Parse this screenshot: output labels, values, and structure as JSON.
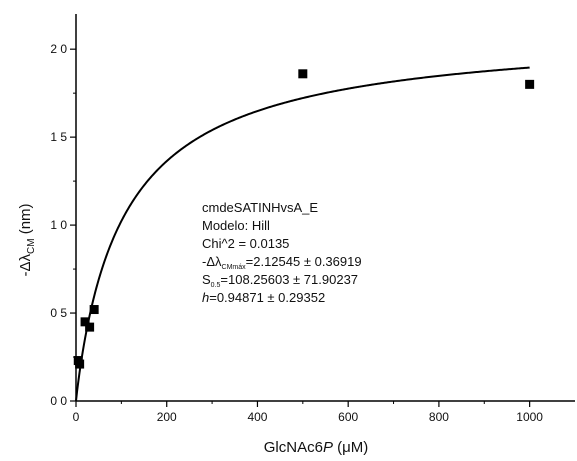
{
  "chart_data": {
    "type": "scatter",
    "title": "",
    "xlabel_main": "GlcNAc6",
    "xlabel_italic": "P",
    "xlabel_unit": " (μM)",
    "ylabel_main": "-Δλ",
    "ylabel_sub": "CM",
    "ylabel_unit": " (nm)",
    "xlim": [
      0,
      1100
    ],
    "ylim": [
      0,
      2.2
    ],
    "x_ticks": [
      0,
      200,
      400,
      600,
      800,
      1000
    ],
    "x_tick_labels": [
      "0",
      "200",
      "400",
      "600",
      "800",
      "1000"
    ],
    "y_ticks": [
      0,
      0.5,
      1.0,
      1.5,
      2.0
    ],
    "y_tick_labels": [
      "0 0",
      "0 5",
      "1 0",
      "1 5",
      "2 0"
    ],
    "grid": false,
    "series": [
      {
        "type": "scatter",
        "points": [
          {
            "x": 5,
            "y": 0.23
          },
          {
            "x": 8,
            "y": 0.21
          },
          {
            "x": 20,
            "y": 0.45
          },
          {
            "x": 30,
            "y": 0.42
          },
          {
            "x": 40,
            "y": 0.52
          },
          {
            "x": 500,
            "y": 1.86
          },
          {
            "x": 1000,
            "y": 1.8
          }
        ]
      },
      {
        "type": "line",
        "model": "hill",
        "params": {
          "vmax": 2.12545,
          "s05": 108.25603,
          "h": 0.94871
        },
        "x_range": [
          0,
          1000
        ]
      }
    ],
    "annotations": {
      "line1": "cmdeSATINHvsA_E",
      "line2": "Modelo: Hill",
      "line3": "Chi^2 = 0.0135",
      "line4_main": "-Δλ",
      "line4_sub": "CMmáx",
      "line4_rest": "=2.12545 ± 0.36919",
      "line5_main": "S",
      "line5_sub": "0.5",
      "line5_rest": "=108.25603 ± 71.90237",
      "line6_italic": "h",
      "line6_rest": "=0.94871 ± 0.29352"
    }
  }
}
